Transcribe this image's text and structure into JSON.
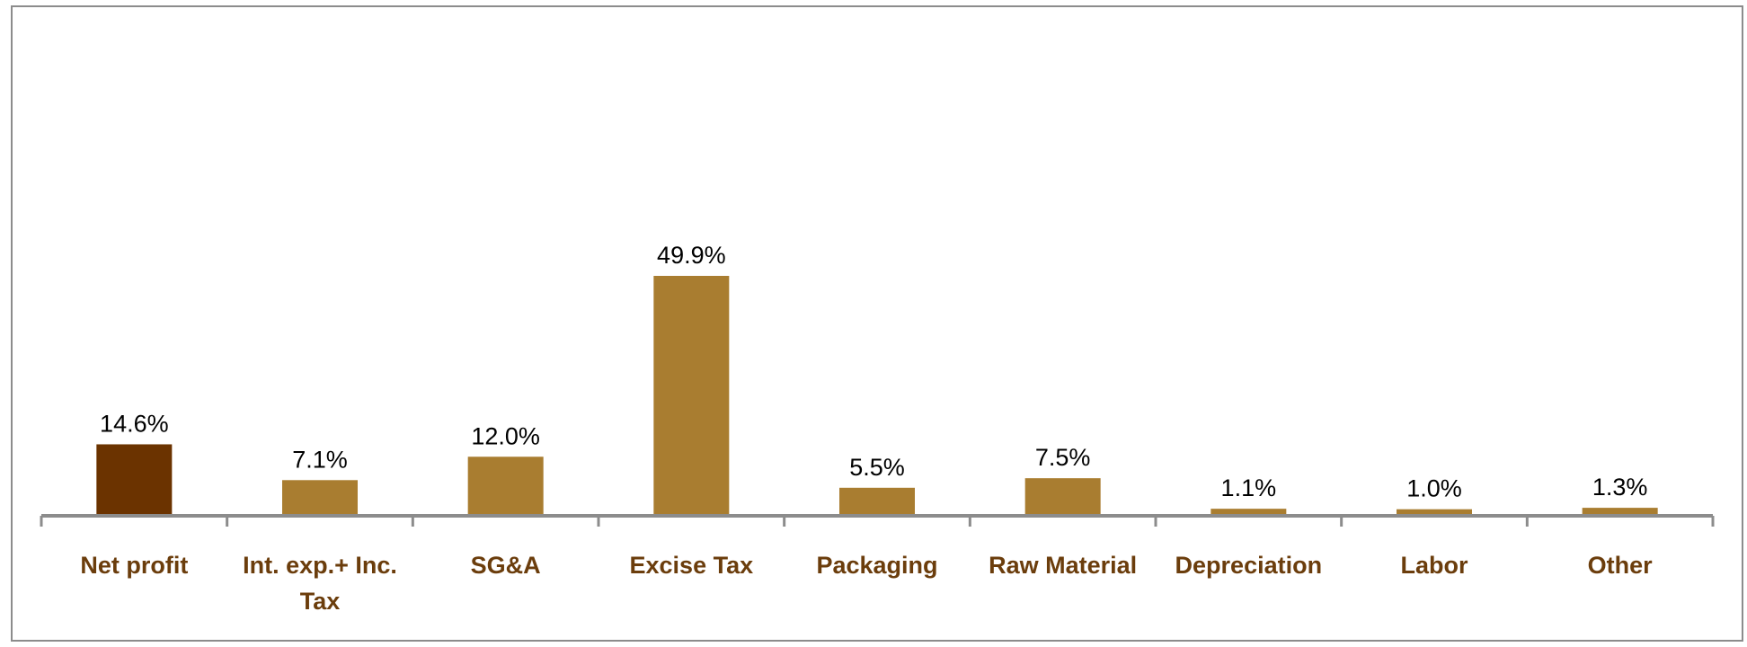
{
  "chart_data": {
    "type": "bar",
    "title": "",
    "xlabel": "",
    "ylabel": "",
    "categories": [
      [
        "Net profit"
      ],
      [
        "Int. exp.+ Inc.",
        "Tax"
      ],
      [
        "SG&A"
      ],
      [
        "Excise Tax"
      ],
      [
        "Packaging"
      ],
      [
        "Raw Material"
      ],
      [
        "Depreciation"
      ],
      [
        "Labor"
      ],
      [
        "Other"
      ]
    ],
    "values": [
      14.6,
      7.1,
      12.0,
      49.9,
      5.5,
      7.5,
      1.1,
      1.0,
      1.3
    ],
    "value_labels": [
      "14.6%",
      "7.1%",
      "12.0%",
      "49.9%",
      "5.5%",
      "7.5%",
      "1.1%",
      "1.0%",
      "1.3%"
    ],
    "unit": "%",
    "ylim": [
      0,
      100
    ],
    "grid": false,
    "legend": "none",
    "colors": {
      "highlight": "#6b3300",
      "bar": "#a97d30",
      "axis": "#8c8c8c",
      "category_text": "#6b3d0c",
      "frame": "#8c8c8c"
    },
    "highlight_index": 0
  }
}
